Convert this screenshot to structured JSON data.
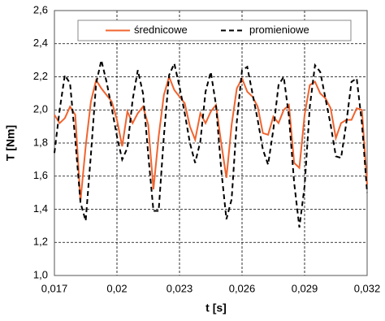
{
  "chart_data": {
    "type": "line",
    "xlabel": "t [s]",
    "ylabel": "T [Nm]",
    "x": [
      0.017,
      0.01725,
      0.0175,
      0.01775,
      0.018,
      0.01825,
      0.0185,
      0.01875,
      0.019,
      0.01925,
      0.0195,
      0.01975,
      0.02,
      0.02025,
      0.0205,
      0.02075,
      0.021,
      0.02125,
      0.0215,
      0.02175,
      0.022,
      0.02225,
      0.0225,
      0.02275,
      0.023,
      0.02325,
      0.0235,
      0.02375,
      0.024,
      0.02425,
      0.0245,
      0.02475,
      0.025,
      0.02525,
      0.0255,
      0.02575,
      0.026,
      0.02625,
      0.0265,
      0.02675,
      0.027,
      0.02725,
      0.0275,
      0.02775,
      0.028,
      0.02825,
      0.0285,
      0.02875,
      0.029,
      0.02925,
      0.0295,
      0.02975,
      0.03,
      0.03025,
      0.0305,
      0.03075,
      0.031,
      0.03125,
      0.0315,
      0.03175,
      0.032
    ],
    "series": [
      {
        "name": "średnicowe",
        "color": "#f0642f",
        "dash": false,
        "values": [
          1.97,
          1.92,
          1.95,
          2.02,
          1.97,
          1.45,
          1.78,
          2.05,
          2.18,
          2.13,
          2.09,
          2.05,
          1.94,
          1.78,
          1.99,
          1.92,
          1.98,
          2.02,
          1.91,
          1.52,
          1.84,
          2.09,
          2.2,
          2.12,
          2.08,
          2.04,
          1.9,
          1.82,
          1.98,
          1.92,
          1.99,
          2.03,
          1.8,
          1.59,
          1.91,
          2.13,
          2.19,
          2.11,
          2.08,
          2.02,
          1.86,
          1.85,
          1.96,
          1.92,
          2.0,
          2.03,
          1.68,
          1.65,
          1.97,
          2.15,
          2.17,
          2.1,
          2.07,
          2.01,
          1.83,
          1.92,
          1.94,
          1.94,
          2.01,
          2.0,
          1.55
        ]
      },
      {
        "name": "promieniowe",
        "color": "#000000",
        "dash": true,
        "values": [
          1.74,
          2.0,
          2.21,
          2.16,
          1.82,
          1.44,
          1.33,
          1.73,
          2.16,
          2.3,
          2.17,
          2.01,
          1.84,
          1.7,
          1.77,
          2.06,
          2.24,
          2.1,
          1.73,
          1.39,
          1.39,
          1.84,
          2.21,
          2.28,
          2.14,
          1.98,
          1.8,
          1.68,
          1.81,
          2.11,
          2.23,
          2.03,
          1.64,
          1.34,
          1.46,
          1.93,
          2.24,
          2.26,
          2.1,
          1.94,
          1.76,
          1.67,
          1.88,
          2.15,
          2.2,
          1.96,
          1.56,
          1.29,
          1.54,
          2.02,
          2.27,
          2.23,
          2.07,
          1.91,
          1.72,
          1.71,
          1.92,
          2.17,
          2.19,
          1.92,
          1.5
        ]
      }
    ],
    "xlim": [
      0.017,
      0.032
    ],
    "xticks": [
      {
        "value": 0.017,
        "label": "0,017"
      },
      {
        "value": 0.02,
        "label": "0,02"
      },
      {
        "value": 0.023,
        "label": "0,023"
      },
      {
        "value": 0.026,
        "label": "0,026"
      },
      {
        "value": 0.029,
        "label": "0,029"
      },
      {
        "value": 0.032,
        "label": "0,032"
      }
    ],
    "ylim": [
      1.0,
      2.6
    ],
    "yticks": [
      {
        "value": 1.0,
        "label": "1,0"
      },
      {
        "value": 1.2,
        "label": "1,2"
      },
      {
        "value": 1.4,
        "label": "1,4"
      },
      {
        "value": 1.6,
        "label": "1,6"
      },
      {
        "value": 1.8,
        "label": "1,8"
      },
      {
        "value": 2.0,
        "label": "2,0"
      },
      {
        "value": 2.2,
        "label": "2,2"
      },
      {
        "value": 2.4,
        "label": "2,4"
      },
      {
        "value": 2.6,
        "label": "2,6"
      }
    ],
    "grid": true,
    "legend": "top"
  }
}
